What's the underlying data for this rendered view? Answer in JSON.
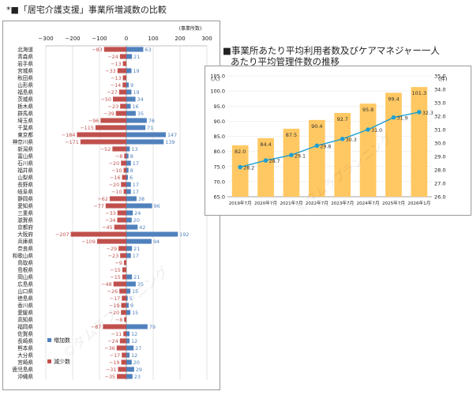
{
  "header": {
    "left_title": "*■「居宅介護支援」事業所増減数の比較",
    "right_title_line1": "■事業所あたり平均利用者数及びケアマネジャー一人",
    "right_title_line2": "あたり平均管理件数の推移"
  },
  "watermark": "©タムラプランニング",
  "chart_data": [
    {
      "type": "bar",
      "orientation": "horizontal",
      "title": "「居宅介護支援」事業所増減数の比較",
      "unit_label": "(事業所数)",
      "xlim": [
        -300,
        300
      ],
      "xticks": [
        -300,
        -200,
        -100,
        0,
        100,
        200,
        300
      ],
      "grid": true,
      "legend_position": "bottom-left",
      "categories": [
        "北海道",
        "青森県",
        "岩手県",
        "宮城県",
        "秋田県",
        "山形県",
        "福島県",
        "茨城県",
        "栃木県",
        "群馬県",
        "埼玉県",
        "千葉県",
        "東京都",
        "神奈川県",
        "新潟県",
        "富山県",
        "石川県",
        "福井県",
        "山梨県",
        "長野県",
        "岐阜県",
        "静岡県",
        "愛知県",
        "三重県",
        "滋賀県",
        "京都府",
        "大阪府",
        "兵庫県",
        "奈良県",
        "和歌山県",
        "鳥取県",
        "島根県",
        "岡山県",
        "広島県",
        "山口県",
        "徳島県",
        "香川県",
        "愛媛県",
        "高知県",
        "福岡県",
        "佐賀県",
        "長崎県",
        "熊本県",
        "大分県",
        "宮崎県",
        "鹿児島県",
        "沖縄県"
      ],
      "series": [
        {
          "name": "増加数",
          "color": "#4f81bd",
          "values": [
            63,
            21,
            0,
            19,
            0,
            9,
            19,
            34,
            16,
            35,
            76,
            71,
            147,
            139,
            13,
            8,
            17,
            8,
            6,
            17,
            17,
            38,
            96,
            24,
            20,
            42,
            192,
            94,
            21,
            17,
            0,
            0,
            21,
            35,
            15,
            5,
            9,
            15,
            0,
            79,
            12,
            12,
            27,
            12,
            20,
            29,
            23
          ]
        },
        {
          "name": "減少数",
          "color": "#c0504d",
          "values": [
            -83,
            -24,
            -13,
            -33,
            -13,
            -14,
            -27,
            -50,
            -23,
            -39,
            -96,
            -115,
            -184,
            -171,
            -52,
            -8,
            -20,
            -10,
            -16,
            -20,
            -10,
            -62,
            -77,
            -33,
            -34,
            -45,
            -207,
            -109,
            -29,
            -23,
            -9,
            -15,
            -15,
            -48,
            -26,
            -17,
            -19,
            -20,
            -8,
            -87,
            -11,
            -24,
            -36,
            -17,
            -19,
            -31,
            -35
          ]
        }
      ]
    },
    {
      "type": "bar+line",
      "categories": [
        "2019年7月",
        "2020年7月",
        "2021年7月",
        "2022年7月",
        "2023年7月",
        "2024年7月",
        "2025年7月",
        "2026年1月"
      ],
      "y_left": {
        "label": "(人)",
        "range": [
          65.0,
          105.0
        ],
        "ticks": [
          "65.0",
          "70.0",
          "75.0",
          "80.0",
          "85.0",
          "90.0",
          "95.0",
          "100.0",
          "105.0"
        ]
      },
      "y_right": {
        "label": "(件)",
        "range": [
          26.0,
          35.0
        ],
        "ticks": [
          "26.0",
          "27.0",
          "28.0",
          "29.0",
          "30.0",
          "31.0",
          "32.0",
          "33.0",
          "34.0",
          "35.0"
        ]
      },
      "grid": true,
      "series": [
        {
          "type": "bar",
          "axis": "left",
          "color": "#ffc863",
          "values": [
            82.0,
            84.4,
            87.5,
            90.4,
            92.7,
            95.8,
            99.4,
            101.3
          ],
          "labels": [
            "82.0",
            "84.4",
            "87.5",
            "90.4",
            "92.7",
            "95.8",
            "99.4",
            "101.3"
          ]
        },
        {
          "type": "line",
          "axis": "right",
          "color": "#1f9fd0",
          "values": [
            28.2,
            28.7,
            29.1,
            29.8,
            30.3,
            31.0,
            31.9,
            32.3
          ],
          "labels": [
            "28.2",
            "28.7",
            "29.1",
            "29.8",
            "30.3",
            "31.0",
            "31.9",
            "32.3"
          ]
        }
      ]
    }
  ]
}
